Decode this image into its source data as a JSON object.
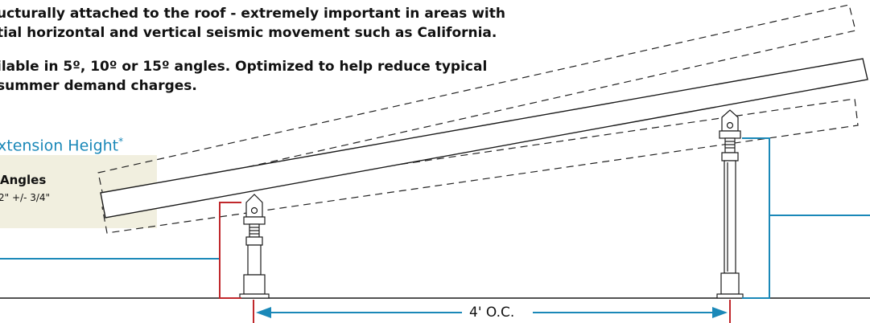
{
  "text": {
    "line1": "ucturally attached to the roof - extremely important in areas with",
    "line2": "tial horizontal and vertical seismic movement such as California.",
    "line3": "ilable in 5º, 10º or 15º angles. Optimized to help reduce typical",
    "line4": "summer demand charges."
  },
  "extension_heading": "xtension Height",
  "extension_mark": "*",
  "angles_box": {
    "title": "Angles",
    "value": "2\" +/- 3/4\""
  },
  "dimension": {
    "label": "4' O.C."
  },
  "colors": {
    "accent_blue": "#1a88b8",
    "accent_red": "#c0282c",
    "box_bg": "#f1efdf",
    "line": "#111111"
  }
}
